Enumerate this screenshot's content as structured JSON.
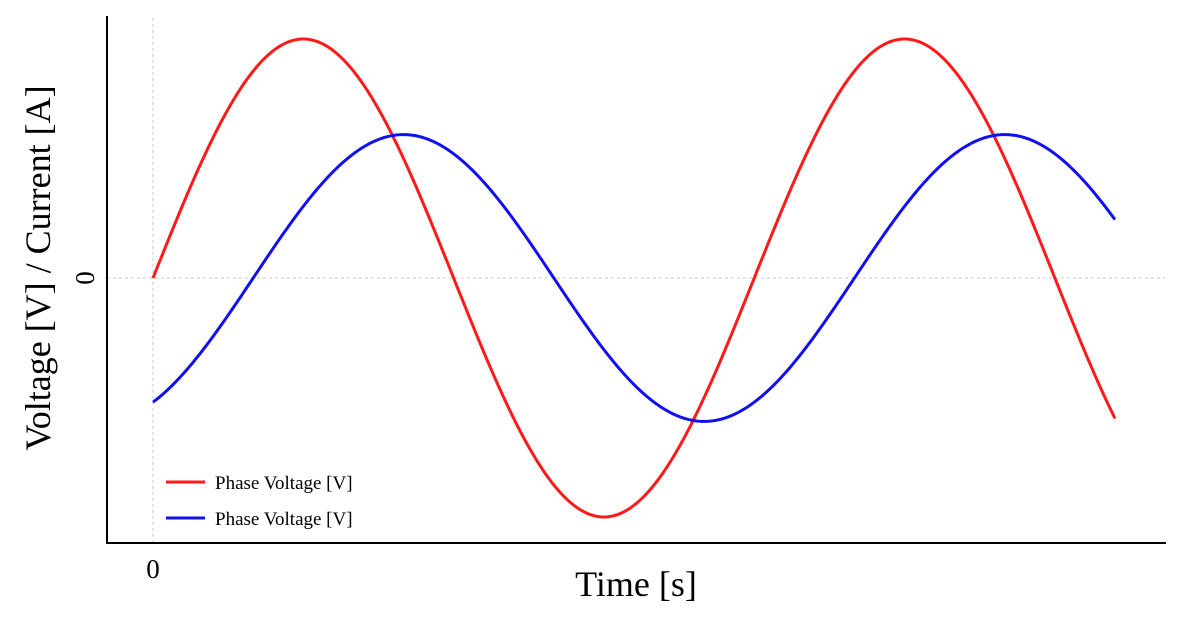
{
  "chart_data": {
    "type": "line",
    "title": "",
    "xlabel": "Time [s]",
    "ylabel": "Voltage [V] / Current [A]",
    "x_ticks": [
      "0"
    ],
    "y_ticks": [
      "0"
    ],
    "grid": "dashed reference lines at x=0 and y=0",
    "legend_position": "bottom-left",
    "x_range_periods": [
      0,
      1.6
    ],
    "series": [
      {
        "name": "Phase Voltage [V]",
        "color": "#ff1a1a",
        "waveform": "sine",
        "amplitude": 1.0,
        "phase_deg": 0,
        "cycles_shown": 1.6
      },
      {
        "name": "Phase Voltage [V]",
        "color": "#1010f0",
        "waveform": "sine",
        "amplitude": 0.6,
        "phase_deg": -60,
        "cycles_shown": 1.6
      }
    ]
  }
}
